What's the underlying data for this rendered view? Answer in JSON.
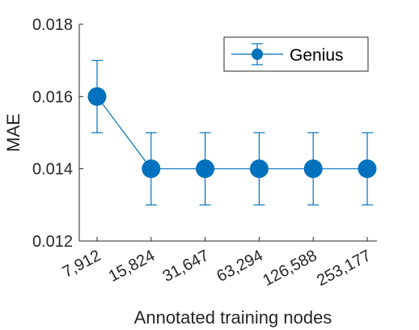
{
  "chart_data": {
    "type": "line",
    "title": "",
    "xlabel": "Annotated training nodes",
    "ylabel": "MAE",
    "categories": [
      "7,912",
      "15,824",
      "31,647",
      "63,294",
      "126,588",
      "253,177"
    ],
    "yticks": [
      "0.012",
      "0.014",
      "0.016",
      "0.018"
    ],
    "ylim": [
      0.012,
      0.018
    ],
    "grid": false,
    "legend_position": "top-right",
    "series": [
      {
        "name": "Genius",
        "color": "#0072BD",
        "marker": "circle",
        "values": [
          0.016,
          0.014,
          0.014,
          0.014,
          0.014,
          0.014
        ],
        "error": [
          0.001,
          0.001,
          0.001,
          0.001,
          0.001,
          0.001
        ]
      }
    ]
  }
}
